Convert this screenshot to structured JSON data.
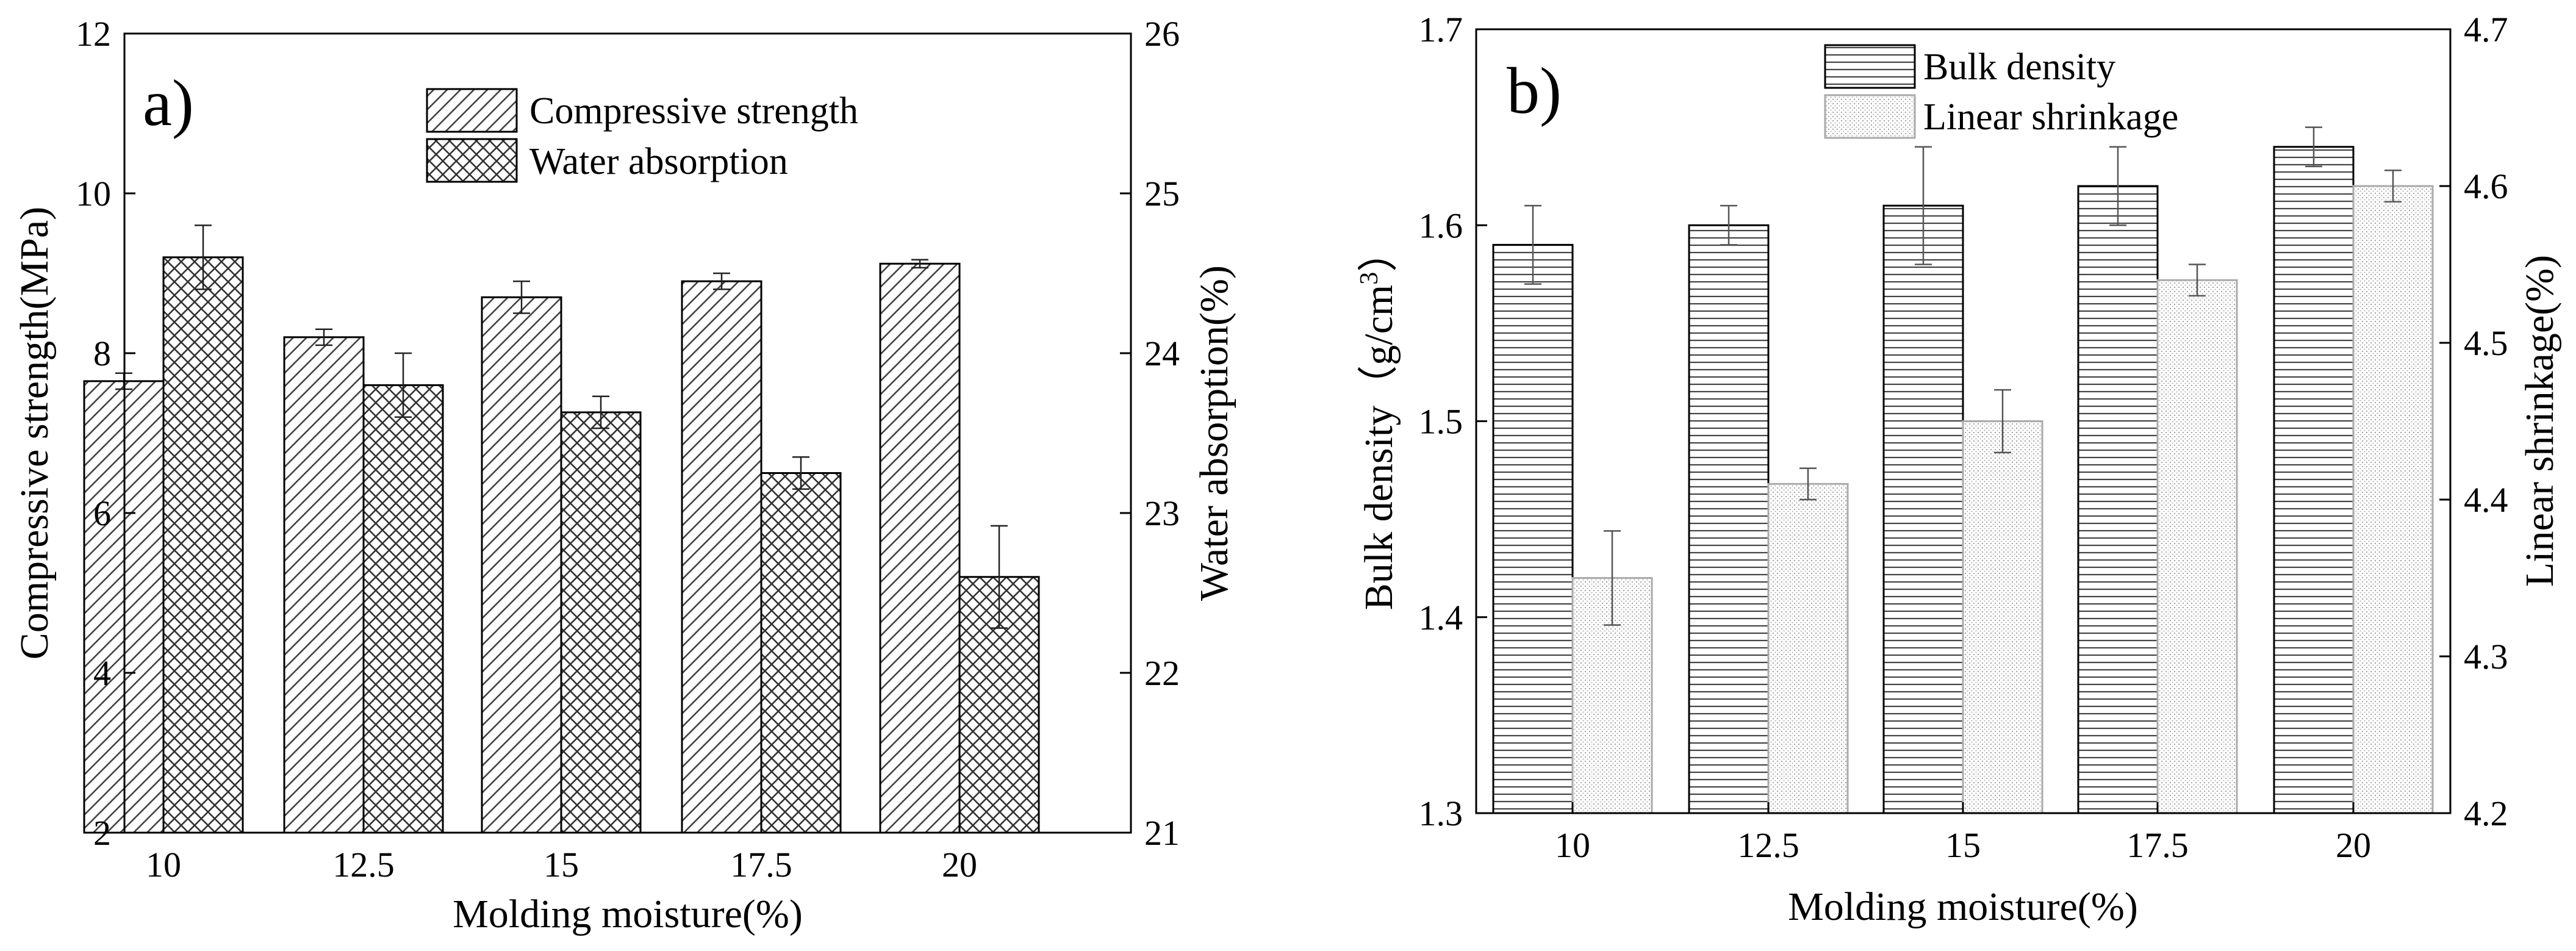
{
  "chart_data": [
    {
      "panel_label": "a)",
      "type": "bar",
      "title": "",
      "xlabel": "Molding moisture(%)",
      "ylabel": "Compressive strength(MPa)",
      "y2label": "Water absorption(%)",
      "categories": [
        "10",
        "12.5",
        "15",
        "17.5",
        "20"
      ],
      "ylim": [
        2,
        12
      ],
      "yticks": [
        "2",
        "4",
        "6",
        "8",
        "10",
        "12"
      ],
      "y2lim": [
        21,
        26
      ],
      "y2ticks": [
        "21",
        "22",
        "23",
        "24",
        "25",
        "26"
      ],
      "legend_position": "top-center",
      "series": [
        {
          "name": "Compressive strength",
          "axis": "left",
          "pattern": "diagonal-hatch",
          "values": [
            7.65,
            8.2,
            8.7,
            8.9,
            9.12
          ],
          "errors": [
            0.1,
            0.1,
            0.2,
            0.1,
            0.05
          ]
        },
        {
          "name": "Water absorption",
          "axis": "right",
          "pattern": "cross-hatch",
          "values": [
            24.6,
            23.8,
            23.63,
            23.25,
            22.6
          ],
          "errors": [
            0.2,
            0.2,
            0.1,
            0.1,
            0.32
          ]
        }
      ]
    },
    {
      "panel_label": "b)",
      "type": "bar",
      "title": "",
      "xlabel": "Molding moisture(%)",
      "ylabel": "Bulk density（g/cm",
      "ylabel_sup": "3",
      "ylabel_close": "）",
      "y2label": "Linear shrinkage(%)",
      "categories": [
        "10",
        "12.5",
        "15",
        "17.5",
        "20"
      ],
      "ylim": [
        1.3,
        1.7
      ],
      "yticks": [
        "1.3",
        "1.4",
        "1.5",
        "1.6",
        "1.7"
      ],
      "y2lim": [
        4.2,
        4.7
      ],
      "y2ticks": [
        "4.2",
        "4.3",
        "4.4",
        "4.5",
        "4.6",
        "4.7"
      ],
      "legend_position": "top-center",
      "series": [
        {
          "name": "Bulk density",
          "axis": "left",
          "pattern": "horizontal-lines",
          "values": [
            1.59,
            1.6,
            1.61,
            1.62,
            1.64
          ],
          "errors": [
            0.02,
            0.01,
            0.03,
            0.02,
            0.01
          ]
        },
        {
          "name": "Linear shrinkage",
          "axis": "right",
          "pattern": "dotted",
          "values": [
            4.35,
            4.41,
            4.45,
            4.54,
            4.6
          ],
          "errors": [
            0.03,
            0.01,
            0.02,
            0.01,
            0.01
          ]
        }
      ]
    }
  ]
}
